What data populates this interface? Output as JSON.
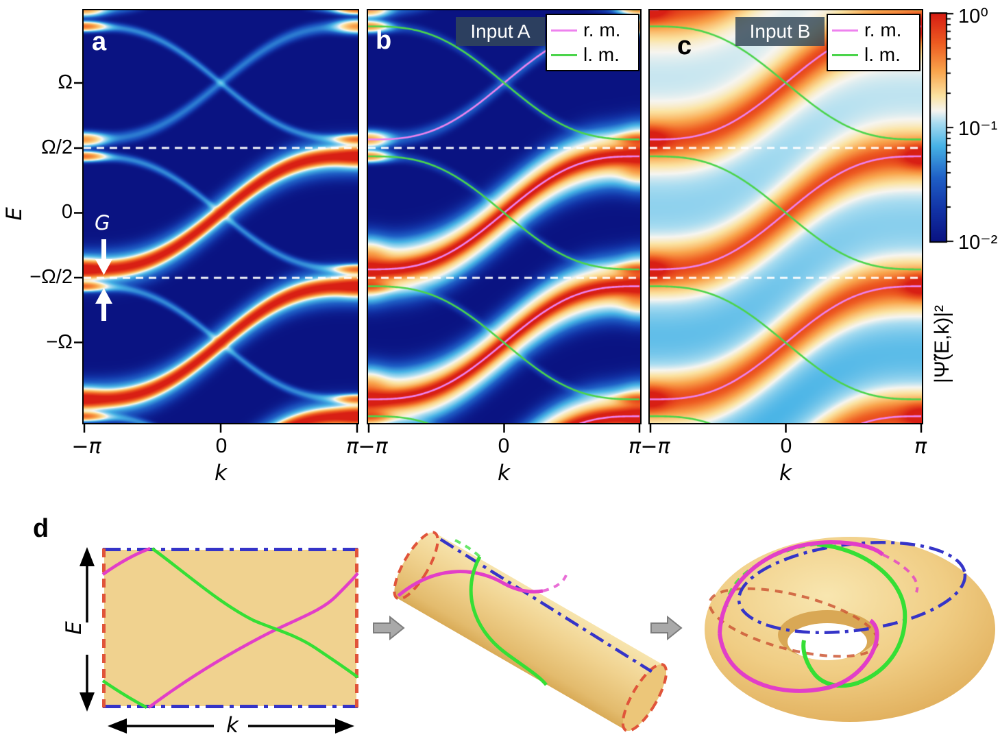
{
  "figure": {
    "panels": [
      {
        "letter": "a",
        "input_label": ""
      },
      {
        "letter": "b",
        "input_label": "Input A"
      },
      {
        "letter": "c",
        "input_label": "Input B"
      }
    ],
    "axes": {
      "x_label": "k",
      "x_ticks": [
        "−π",
        "0",
        "π"
      ],
      "y_label": "E",
      "y_ticks": [
        "Ω",
        "Ω/2",
        "0",
        "−Ω/2",
        "−Ω"
      ]
    },
    "gap_label": "G",
    "legend": {
      "items": [
        {
          "label": "r. m.",
          "color": "#ee82ee"
        },
        {
          "label": "l. m.",
          "color": "#4bd44b"
        }
      ]
    },
    "colorbar": {
      "ticks": [
        "10⁰",
        "10⁻¹",
        "10⁻²"
      ],
      "label": "|Ψ̃(E,k)|²",
      "scale": "log"
    },
    "panel_d": {
      "label": "d",
      "x_label": "k",
      "y_label": "E"
    },
    "heat_background": "#12177e",
    "colormap_stops": [
      [
        0.0,
        "#0a1382"
      ],
      [
        0.14,
        "#1233a6"
      ],
      [
        0.28,
        "#1f5fc6"
      ],
      [
        0.42,
        "#47b3e6"
      ],
      [
        0.52,
        "#a8dcf0"
      ],
      [
        0.575,
        "#f6f5f0"
      ],
      [
        0.64,
        "#fbe3a2"
      ],
      [
        0.75,
        "#f9a44c"
      ],
      [
        0.87,
        "#ee5d22"
      ],
      [
        1.0,
        "#d81f14"
      ]
    ]
  },
  "chart_data": [
    {
      "panel": "a",
      "type": "heatmap",
      "x_label": "k",
      "x_ticks": [
        "−π",
        "0",
        "π"
      ],
      "x_range_rad": [
        -3.14159,
        3.14159
      ],
      "y_label": "E",
      "y_ticks": [
        "Ω",
        "Ω/2",
        "0",
        "−Ω/2",
        "−Ω"
      ],
      "y_range_in_Omega": [
        -1.617,
        1.559
      ],
      "value_label": "|Ψ̃(E,k)|²",
      "value_scale": "log10",
      "value_range": [
        0.01,
        1.0
      ],
      "band_model": "E/Ω = n ± 0.435·(k + sin k)/π, n = −2…2 (+ : right mover, − : left mover)",
      "band_amplitude_factor": 0.435,
      "n_range": [
        -2,
        2
      ],
      "gap": {
        "label": "G",
        "at": "k = ±π, E = ±Ω/2 + nΩ",
        "half_width_Omega": 0.065
      },
      "weights": "right movers (n ≤ 0) ≈ 1 (red core); left movers ≈ 0.04 (faint), enhanced into bright caps near k = ±π",
      "guide_lines_E_Omega": [
        0.5,
        -0.5
      ]
    },
    {
      "panel": "b",
      "type": "heatmap",
      "input_label": "Input A",
      "x_label": "k",
      "x_ticks": [
        "−π",
        "0",
        "π"
      ],
      "x_range_rad": [
        -3.14159,
        3.14159
      ],
      "y_label": "E",
      "y_range_in_Omega": [
        -1.617,
        1.559
      ],
      "value_label": "|Ψ̃(E,k)|²",
      "value_scale": "log10",
      "value_range": [
        0.01,
        1.0
      ],
      "band_amplitude_factor": 0.435,
      "n_range": [
        -2,
        2
      ],
      "overlays": [
        {
          "name": "r. m.",
          "meaning": "right mover",
          "color": "#ee82ee"
        },
        {
          "name": "l. m.",
          "meaning": "left mover",
          "color": "#4bd44b"
        }
      ],
      "weights": "broad bright halo around right-mover bands with n ≤ 0; left movers traced only by green lines",
      "guide_lines_E_Omega": [
        0.5,
        -0.5
      ]
    },
    {
      "panel": "c",
      "type": "heatmap",
      "input_label": "Input B",
      "x_label": "k",
      "x_ticks": [
        "−π",
        "0",
        "π"
      ],
      "x_range_rad": [
        -3.14159,
        3.14159
      ],
      "y_label": "E",
      "y_range_in_Omega": [
        -1.617,
        1.559
      ],
      "value_label": "|Ψ̃(E,k)|²",
      "value_scale": "log10",
      "value_range": [
        0.01,
        1.0
      ],
      "band_amplitude_factor": 0.435,
      "n_range": [
        -2,
        2
      ],
      "overlays": [
        {
          "name": "r. m.",
          "meaning": "right mover",
          "color": "#ee82ee"
        },
        {
          "name": "l. m.",
          "meaning": "left mover",
          "color": "#4bd44b"
        }
      ],
      "weights": "strongly broadened diffuse weight: light-blue background, white/orange halos along right-mover bands, red hotspots near k = ±π, dark pockets at bottom",
      "guide_lines_E_Omega": [
        0.5,
        -0.5
      ]
    },
    {
      "panel": "d",
      "type": "diagram",
      "description": "Brillouin-zone rectangle in (k,E) with periodic boundaries — k edges blue dash-dot, E edges red dashed — rolled into a cylinder and then a torus; right-mover (magenta) and left-mover (green) modes close into loops winding around the torus",
      "axis_labels": {
        "x": "k",
        "y": "E"
      },
      "colors": {
        "surface": "#f0d28f",
        "surface_light": "#f7e4ad",
        "surface_dark": "#d9ab57",
        "k_boundary": "#3534c8",
        "E_boundary": "#e0543a",
        "right_mover": "#e23ec8",
        "left_mover": "#35df35",
        "arrow": "#a9a9a9"
      }
    }
  ]
}
